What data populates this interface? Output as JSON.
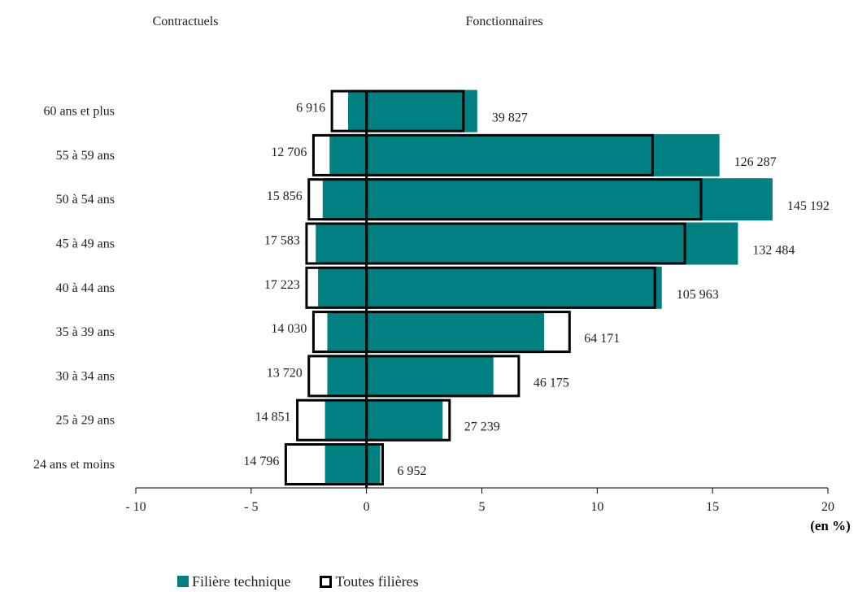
{
  "chart_data": {
    "type": "bar",
    "orientation": "horizontal",
    "header_left": "Contractuels",
    "header_right": "Fonctionnaires",
    "unit_label": "(en %)",
    "categories": [
      "24 ans et moins",
      "25 à 29 ans",
      "30 à 34 ans",
      "35 à 39 ans",
      "40 à 44 ans",
      "45 à 49 ans",
      "50 à 54 ans",
      "55 à 59 ans",
      "60 ans et plus"
    ],
    "xlim": [
      -10,
      20
    ],
    "x_ticks": [
      -10,
      -5,
      0,
      5,
      10,
      15,
      20
    ],
    "x_tick_labels": [
      "- 10",
      "- 5",
      "0",
      "5",
      "10",
      "15",
      "20"
    ],
    "series": [
      {
        "name": "Filière technique",
        "style": "filled",
        "color": "#008080",
        "contractuels": [
          -1.8,
          -1.8,
          -1.7,
          -1.7,
          -2.1,
          -2.2,
          -1.9,
          -1.6,
          -0.8
        ],
        "fonctionnaires": [
          0.6,
          3.3,
          5.5,
          7.7,
          12.8,
          16.1,
          17.6,
          15.3,
          4.8
        ]
      },
      {
        "name": "Toutes filières",
        "style": "outline",
        "color": "#000000",
        "contractuels": [
          -3.5,
          -3.0,
          -2.5,
          -2.3,
          -2.6,
          -2.6,
          -2.5,
          -2.3,
          -1.5
        ],
        "fonctionnaires": [
          0.7,
          3.6,
          6.6,
          8.8,
          12.5,
          13.8,
          14.5,
          12.4,
          4.2
        ]
      }
    ],
    "labels_contractuels": [
      "14 796",
      "14 851",
      "13 720",
      "14 030",
      "17 223",
      "17 583",
      "15 856",
      "12 706",
      "6 916"
    ],
    "labels_fonctionnaires": [
      "6 952",
      "27 239",
      "46 175",
      "64 171",
      "105 963",
      "132 484",
      "145 192",
      "126 287",
      "39 827"
    ],
    "grid": false,
    "legend_position": "bottom"
  },
  "legend": {
    "filled_label": "Filière technique",
    "outline_label": "Toutes filières"
  }
}
